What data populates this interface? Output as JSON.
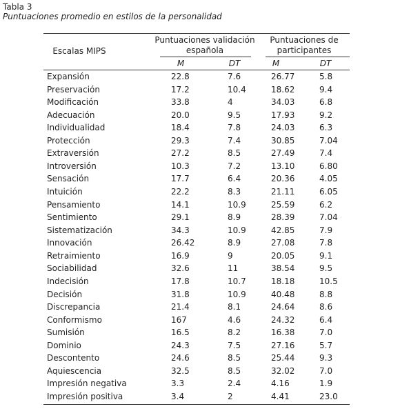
{
  "title": "Tabla 3",
  "subtitle": "Puntuaciones promedio en estilos de la personalidad",
  "table": {
    "header": {
      "scale": "Escalas MIPS",
      "groups": [
        {
          "lines": [
            "Puntuaciones validación",
            "española"
          ]
        },
        {
          "lines": [
            "Puntuaciones de",
            "participantes"
          ]
        }
      ],
      "subheaders": [
        "M",
        "DT",
        "M",
        "DT"
      ]
    },
    "rows": [
      [
        "Expansión",
        "22.8",
        "7.6",
        "26.77",
        "5.8"
      ],
      [
        "Preservación",
        "17.2",
        "10.4",
        "18.62",
        "9.4"
      ],
      [
        "Modificación",
        "33.8",
        "4",
        "34.03",
        "6.8"
      ],
      [
        "Adecuación",
        "20.0",
        "9.5",
        "17.93",
        "9.2"
      ],
      [
        "Individualidad",
        "18.4",
        "7.8",
        "24.03",
        "6.3"
      ],
      [
        "Protección",
        "29.3",
        "7.4",
        "30.85",
        "7.04"
      ],
      [
        "Extraversión",
        "27.2",
        "8.5",
        "27.49",
        "7.4"
      ],
      [
        "Introversión",
        "10.3",
        "7.2",
        "13.10",
        "6.80"
      ],
      [
        "Sensación",
        "17.7",
        "6.4",
        "20.36",
        "4.05"
      ],
      [
        "Intuición",
        "22.2",
        "8.3",
        "21.11",
        "6.05"
      ],
      [
        "Pensamiento",
        "14.1",
        "10.9",
        "25.59",
        "6.2"
      ],
      [
        "Sentimiento",
        "29.1",
        "8.9",
        "28.39",
        "7.04"
      ],
      [
        "Sistematización",
        "34.3",
        "10.9",
        "42.85",
        "7.9"
      ],
      [
        "Innovación",
        "26.42",
        "8.9",
        "27.08",
        "7.8"
      ],
      [
        "Retraimiento",
        "16.9",
        "9",
        "20.05",
        "9.1"
      ],
      [
        "Sociabilidad",
        "32.6",
        "11",
        "38.54",
        "9.5"
      ],
      [
        "Indecisión",
        "17.8",
        "10.7",
        "18.18",
        "10.5"
      ],
      [
        "Decisión",
        "31.8",
        "10.9",
        "40.48",
        "8.8"
      ],
      [
        "Discrepancia",
        "21.4",
        "8.1",
        "24.64",
        "8.6"
      ],
      [
        "Conformismo",
        "167",
        "4.6",
        "24.32",
        "6.4"
      ],
      [
        "Sumisión",
        "16.5",
        "8.2",
        "16.38",
        "7.0"
      ],
      [
        "Dominio",
        "24.3",
        "7.5",
        "27.16",
        "5.7"
      ],
      [
        "Descontento",
        "24.6",
        "8.5",
        "25.44",
        "9.3"
      ],
      [
        "Aquiescencia",
        "32.5",
        "8.5",
        "32.02",
        "7.0"
      ],
      [
        "Impresión negativa",
        "3.3",
        "2.4",
        "4.16",
        "1.9"
      ],
      [
        "Impresión positiva",
        "3.4",
        "2",
        "4.41",
        "23.0"
      ]
    ]
  }
}
